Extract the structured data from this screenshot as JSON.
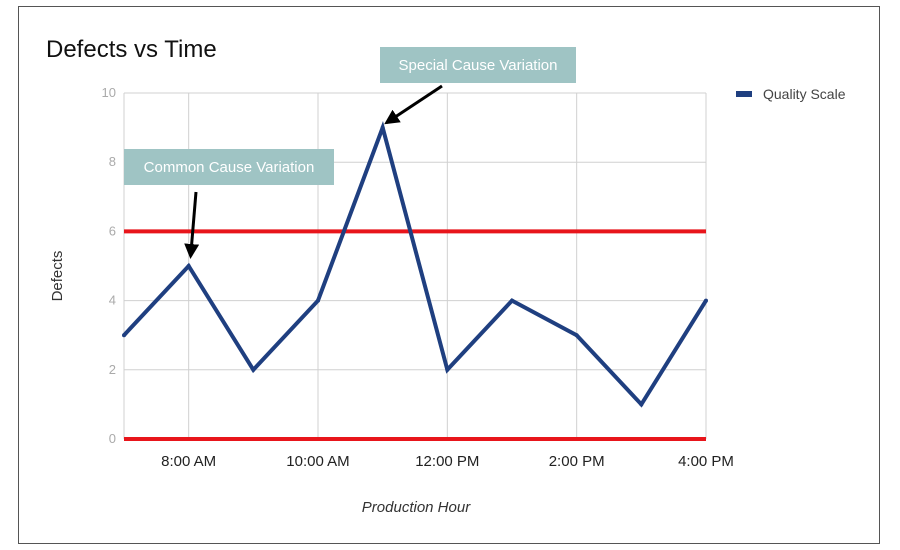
{
  "chart_data": {
    "type": "line",
    "title": "Defects vs Time",
    "xlabel": "Production Hour",
    "ylabel": "Defects",
    "ylim": [
      0,
      10
    ],
    "yticks": [
      0,
      2,
      4,
      6,
      8,
      10
    ],
    "x_labels": [
      "8:00 AM",
      "10:00 AM",
      "12:00 PM",
      "2:00 PM",
      "4:00 PM"
    ],
    "x_label_hours": [
      8,
      10,
      12,
      14,
      16
    ],
    "x_hours": [
      7,
      8,
      9,
      10,
      11,
      12,
      13,
      14,
      15,
      16
    ],
    "xlim": [
      7,
      16
    ],
    "series": [
      {
        "name": "Quality Scale",
        "color": "#1f3f80",
        "values": [
          3,
          5,
          2,
          4,
          9,
          2,
          4,
          3,
          1,
          4
        ]
      }
    ],
    "reference_lines": [
      {
        "y": 6,
        "color": "#e8151b"
      },
      {
        "y": 0,
        "color": "#e8151b"
      }
    ],
    "annotations": [
      {
        "text": "Common Cause Variation",
        "x": 8,
        "y": 5
      },
      {
        "text": "Special Cause Variation",
        "x": 11,
        "y": 9
      }
    ],
    "legend_position": "top-right",
    "grid": true
  }
}
